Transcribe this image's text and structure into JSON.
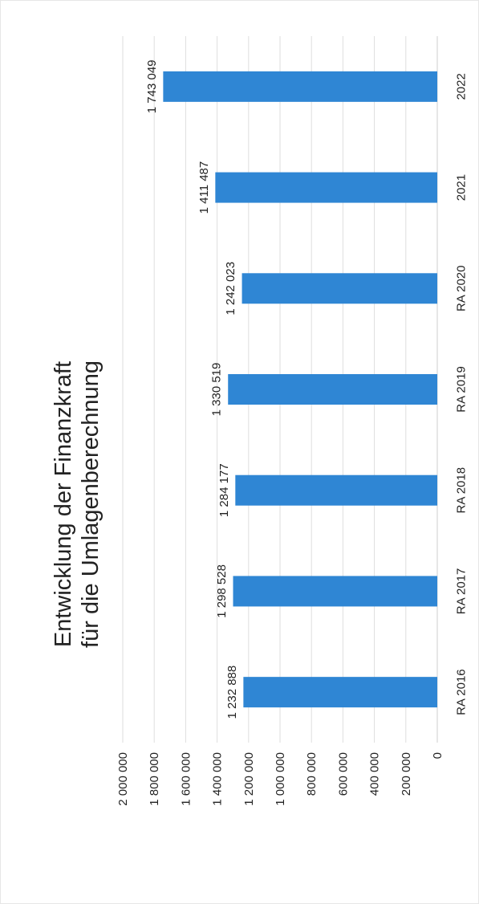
{
  "chart_data": {
    "type": "bar",
    "orientation": "rotated-90-ccw",
    "title_lines": [
      "Entwicklung der Finanzkraft",
      "für die Umlagenberechnung"
    ],
    "categories": [
      "RA 2016",
      "RA 2017",
      "RA 2018",
      "RA 2019",
      "RA 2020",
      "2021",
      "2022"
    ],
    "values": [
      1232888,
      1298528,
      1284177,
      1330519,
      1242023,
      1411487,
      1743049
    ],
    "value_labels": [
      "1 232 888",
      "1 298 528",
      "1 284 177",
      "1 330 519",
      "1 242 023",
      "1 411 487",
      "1 743 049"
    ],
    "ylim": [
      0,
      2000000
    ],
    "yticks": [
      0,
      200000,
      400000,
      600000,
      800000,
      1000000,
      1200000,
      1400000,
      1600000,
      1800000,
      2000000
    ],
    "ytick_labels": [
      "0",
      "200 000",
      "400 000",
      "600 000",
      "800 000",
      "1 000 000",
      "1 200 000",
      "1 400 000",
      "1 600 000",
      "1 800 000",
      "2 000 000"
    ],
    "grid": true,
    "legend": "none",
    "bar_color": "#2f86d4"
  }
}
